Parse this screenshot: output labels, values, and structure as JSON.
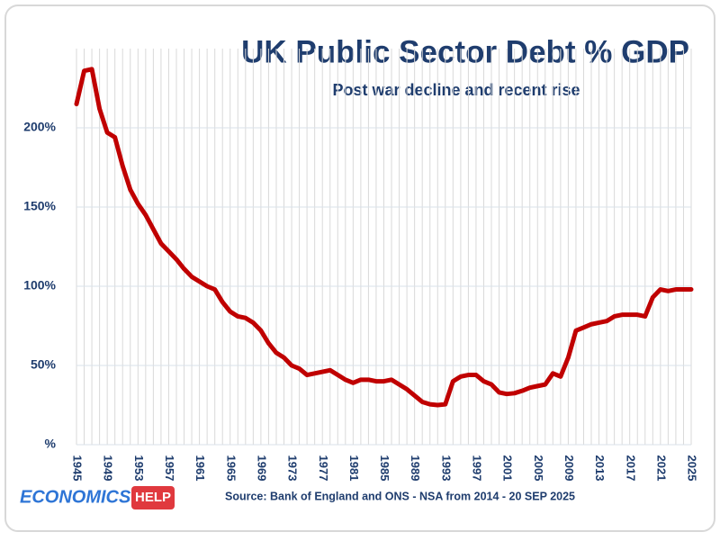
{
  "chart_data": {
    "type": "line",
    "title": "UK Public Sector Debt % GDP",
    "subtitle": "Post war decline and recent rise",
    "source": "Source: Bank of England and ONS - NSA from 2014  - 20 SEP 2025",
    "x": [
      1945,
      1946,
      1947,
      1948,
      1949,
      1950,
      1951,
      1952,
      1953,
      1954,
      1955,
      1956,
      1957,
      1958,
      1959,
      1960,
      1961,
      1962,
      1963,
      1964,
      1965,
      1966,
      1967,
      1968,
      1969,
      1970,
      1971,
      1972,
      1973,
      1974,
      1975,
      1976,
      1977,
      1978,
      1979,
      1980,
      1981,
      1982,
      1983,
      1984,
      1985,
      1986,
      1987,
      1988,
      1989,
      1990,
      1991,
      1992,
      1993,
      1994,
      1995,
      1996,
      1997,
      1998,
      1999,
      2000,
      2001,
      2002,
      2003,
      2004,
      2005,
      2006,
      2007,
      2008,
      2009,
      2010,
      2011,
      2012,
      2013,
      2014,
      2015,
      2016,
      2017,
      2018,
      2019,
      2020,
      2021,
      2022,
      2023,
      2024,
      2025
    ],
    "values": [
      215,
      236,
      237,
      212,
      197,
      194,
      176,
      161,
      152,
      145,
      136,
      127,
      122,
      117,
      111,
      106,
      103,
      100,
      98,
      90,
      84,
      81,
      80,
      77,
      72,
      64,
      58,
      55,
      50,
      48,
      44,
      45,
      46,
      47,
      44,
      41,
      39,
      41,
      41,
      40,
      40,
      41,
      38,
      35,
      31,
      27,
      25.5,
      25,
      25.5,
      40,
      43,
      44,
      44,
      40,
      38,
      33,
      32,
      32.5,
      34,
      36,
      37,
      38,
      45,
      43,
      55,
      72,
      74,
      76,
      77,
      78,
      81,
      82,
      82,
      82,
      81,
      93,
      98,
      97,
      98,
      98,
      98
    ],
    "color": "#c00000",
    "xlim": [
      1945,
      2025
    ],
    "xticks": [
      1945,
      1949,
      1953,
      1957,
      1961,
      1965,
      1969,
      1973,
      1977,
      1981,
      1985,
      1989,
      1993,
      1997,
      2001,
      2005,
      2009,
      2013,
      2017,
      2021,
      2025
    ],
    "ylim": [
      0,
      250
    ],
    "yticks": [
      {
        "value": 0,
        "label": "%"
      },
      {
        "value": 50,
        "label": "50%"
      },
      {
        "value": 100,
        "label": "100%"
      },
      {
        "value": 150,
        "label": "150%"
      },
      {
        "value": 200,
        "label": "200%"
      }
    ],
    "grid": true
  },
  "logo": [
    "ECONOMICS",
    "HELP"
  ]
}
